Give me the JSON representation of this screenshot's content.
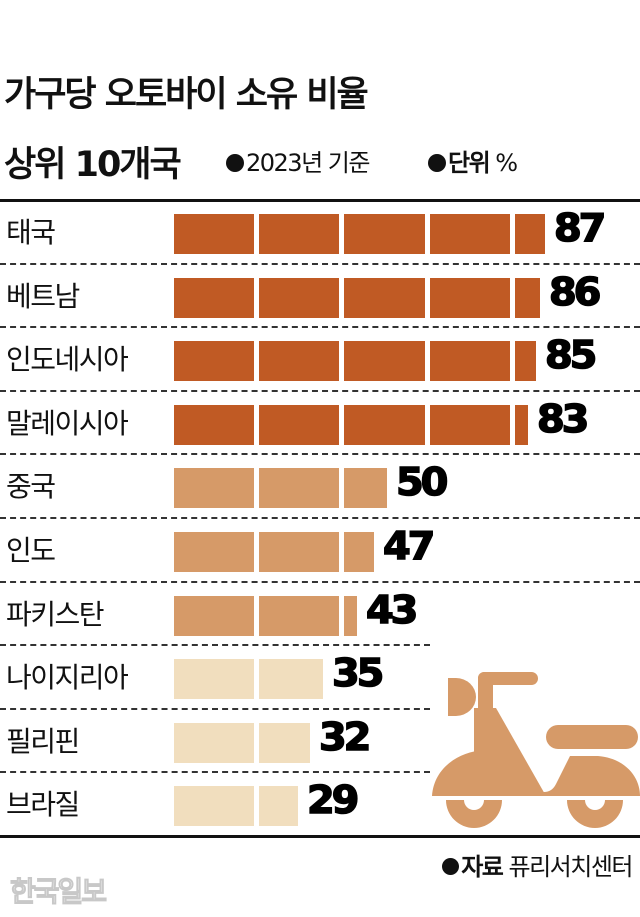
{
  "header": {
    "title_line1": "가구당 오토바이 소유 비율",
    "title_line2": "상위 10개국",
    "legend": [
      {
        "bold": "",
        "text": "2023년 기준"
      },
      {
        "bold": "단위",
        "text": " %"
      }
    ]
  },
  "colors": {
    "top_tier": "#C05A24",
    "mid_tier": "#D69A68",
    "low_tier": "#F1DEBE",
    "scooter": "#D69A68",
    "text": "#111111"
  },
  "chart_data": {
    "type": "bar",
    "orientation": "horizontal",
    "title": "가구당 오토바이 소유 비율 상위 10개국",
    "subtitle": "2023년 기준, 단위 %",
    "categories": [
      "태국",
      "베트남",
      "인도네시아",
      "말레이시아",
      "중국",
      "인도",
      "파키스탄",
      "나이지리아",
      "필리핀",
      "브라질"
    ],
    "values": [
      87,
      86,
      85,
      83,
      50,
      47,
      43,
      35,
      32,
      29
    ],
    "tiers": [
      "top",
      "top",
      "top",
      "top",
      "mid",
      "mid",
      "mid",
      "low",
      "low",
      "low"
    ],
    "xlabel": "",
    "ylabel": "",
    "xlim": [
      0,
      100
    ],
    "segment_size": 20,
    "grid": false,
    "legend": "none",
    "source": "퓨리서치센터"
  },
  "rows": [
    {
      "label": "태국",
      "value": "87"
    },
    {
      "label": "베트남",
      "value": "86"
    },
    {
      "label": "인도네시아",
      "value": "85"
    },
    {
      "label": "말레이시아",
      "value": "83"
    },
    {
      "label": "중국",
      "value": "50"
    },
    {
      "label": "인도",
      "value": "47"
    },
    {
      "label": "파키스탄",
      "value": "43"
    },
    {
      "label": "나이지리아",
      "value": "35"
    },
    {
      "label": "필리핀",
      "value": "32"
    },
    {
      "label": "브라질",
      "value": "29"
    }
  ],
  "footer": {
    "source_label": "자료",
    "source_text": " 퓨리서치센터",
    "watermark": "한국일보"
  },
  "icons": {
    "illustration": "scooter-icon"
  }
}
